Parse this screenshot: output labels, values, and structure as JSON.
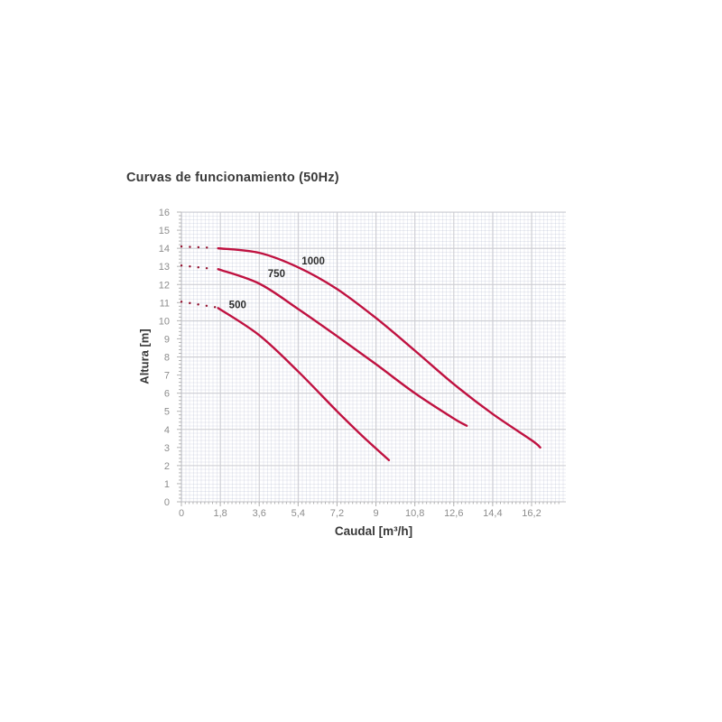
{
  "chart_data": {
    "type": "line",
    "title": "Curvas de funcionamiento (50Hz)",
    "xlabel": "Caudal [m³/h]",
    "ylabel": "Altura [m]",
    "xlim": [
      0,
      17.8
    ],
    "ylim": [
      0,
      16
    ],
    "x_ticks": [
      0,
      1.8,
      3.6,
      5.4,
      7.2,
      9,
      10.8,
      12.6,
      14.4,
      16.2
    ],
    "x_tick_labels": [
      "0",
      "1,8",
      "3,6",
      "5,4",
      "7,2",
      "9",
      "10,8",
      "12,6",
      "14,4",
      "16,2"
    ],
    "y_ticks": [
      0,
      1,
      2,
      3,
      4,
      5,
      6,
      7,
      8,
      9,
      10,
      11,
      12,
      13,
      14,
      15,
      16
    ],
    "y_tick_labels": [
      "0",
      "1",
      "2",
      "3",
      "4",
      "5",
      "6",
      "7",
      "8",
      "9",
      "10",
      "11",
      "12",
      "13",
      "14",
      "15",
      "16"
    ],
    "grid": {
      "x_major_step": 1.8,
      "y_major_step": 2,
      "minor_grid": true
    },
    "legend_position": "inline-labels",
    "colors": {
      "curve": "#bf1140",
      "dotted": "#93122f",
      "major_grid": "#cdcdd2",
      "axis_line": "#c0c0c6",
      "tick_mark": "#b3b3b3",
      "tick_text": "#8d8d8d",
      "heading_text": "#383838",
      "curve_label_text": "#2e2e2e"
    },
    "series": [
      {
        "name": "500",
        "label_xy": [
          2.6,
          10.9
        ],
        "dotted_points": [
          [
            0,
            11.05
          ],
          [
            1.55,
            10.75
          ]
        ],
        "points": [
          [
            1.7,
            10.7
          ],
          [
            3.6,
            9.2
          ],
          [
            5.4,
            7.2
          ],
          [
            7.2,
            5.0
          ],
          [
            8.4,
            3.6
          ],
          [
            9.6,
            2.3
          ]
        ]
      },
      {
        "name": "750",
        "label_xy": [
          4.4,
          12.6
        ],
        "dotted_points": [
          [
            0,
            13.05
          ],
          [
            1.55,
            12.85
          ]
        ],
        "points": [
          [
            1.7,
            12.85
          ],
          [
            3.6,
            12.05
          ],
          [
            5.4,
            10.65
          ],
          [
            7.2,
            9.15
          ],
          [
            9.0,
            7.6
          ],
          [
            10.8,
            6.0
          ],
          [
            12.6,
            4.6
          ],
          [
            13.2,
            4.2
          ]
        ]
      },
      {
        "name": "1000",
        "label_xy": [
          6.1,
          13.3
        ],
        "dotted_points": [
          [
            0,
            14.1
          ],
          [
            1.55,
            14.02
          ]
        ],
        "points": [
          [
            1.7,
            14.0
          ],
          [
            3.6,
            13.75
          ],
          [
            5.4,
            12.95
          ],
          [
            7.2,
            11.75
          ],
          [
            9.0,
            10.15
          ],
          [
            10.8,
            8.35
          ],
          [
            12.6,
            6.5
          ],
          [
            14.4,
            4.85
          ],
          [
            16.2,
            3.4
          ],
          [
            16.6,
            3.0
          ]
        ]
      }
    ]
  }
}
